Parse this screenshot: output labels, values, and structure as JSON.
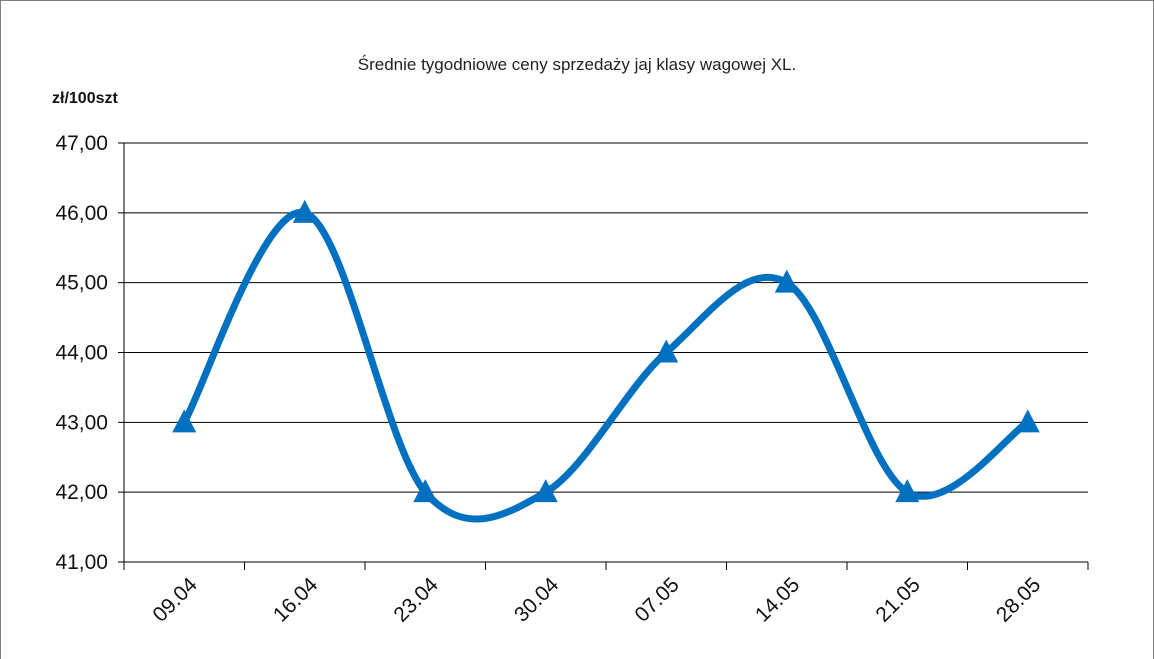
{
  "chart_data": {
    "type": "line",
    "title": "Średnie tygodniowe ceny sprzedaży jaj klasy wagowej XL.",
    "ylabel": "zł/100szt",
    "xlabel": "",
    "categories": [
      "09.04",
      "16.04",
      "23.04",
      "30.04",
      "07.05",
      "14.05",
      "21.05",
      "28.05"
    ],
    "series": [
      {
        "values": [
          43.0,
          46.0,
          42.0,
          42.0,
          44.0,
          45.0,
          42.0,
          43.0
        ]
      }
    ],
    "yticks": [
      "41,00",
      "42,00",
      "43,00",
      "44,00",
      "45,00",
      "46,00",
      "47,00"
    ],
    "ylim": [
      41,
      47
    ],
    "ytick_step": 1,
    "grid": true,
    "smooth": true,
    "marker": "triangle",
    "line_color": "#0070c0",
    "legend": false
  }
}
